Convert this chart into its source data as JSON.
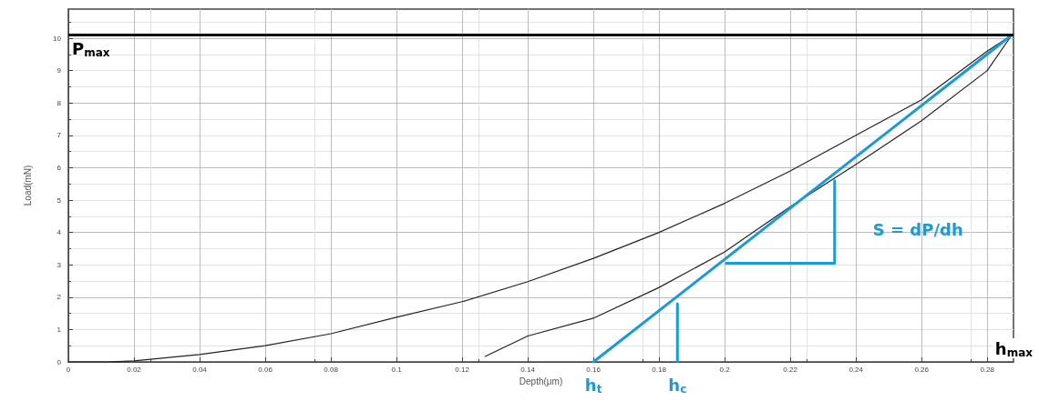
{
  "chart_data": {
    "type": "line",
    "xlabel": "Depth(μm)",
    "ylabel": "Load(mN)",
    "xlim": [
      0,
      0.288
    ],
    "ylim": [
      0,
      10.9
    ],
    "xticks": [
      0,
      0.02,
      0.04,
      0.06,
      0.08,
      0.1,
      0.12,
      0.14,
      0.16,
      0.18,
      0.2,
      0.22,
      0.24,
      0.26,
      0.28
    ],
    "yticks": [
      0,
      1,
      2,
      3,
      4,
      5,
      6,
      7,
      8,
      9,
      10
    ],
    "grid": true,
    "marker": "none",
    "line_style": "solid",
    "series": [
      {
        "color": "#222222",
        "x": [
          0,
          0.012,
          0.02,
          0.04,
          0.06,
          0.08,
          0.1,
          0.12,
          0.14,
          0.16,
          0.18,
          0.2,
          0.22,
          0.24,
          0.26,
          0.28,
          0.2875
        ],
        "values": [
          0,
          0,
          0.03,
          0.23,
          0.5,
          0.87,
          1.38,
          1.86,
          2.48,
          3.2,
          4.0,
          4.9,
          5.9,
          7.0,
          8.1,
          9.6,
          10.1
        ]
      },
      {
        "color": "#222222",
        "x": [
          0.127,
          0.14,
          0.16,
          0.18,
          0.2,
          0.22,
          0.24,
          0.26,
          0.28,
          0.2875
        ],
        "values": [
          0.17,
          0.8,
          1.35,
          2.3,
          3.4,
          4.8,
          6.1,
          7.45,
          9.0,
          10.1
        ]
      },
      {
        "color": "#1a9ad6",
        "x": [
          0.16,
          0.2875
        ],
        "values": [
          0,
          10.1
        ]
      },
      {
        "color": "#1a9ad6",
        "x": [
          0.1856,
          0.1856
        ],
        "values": [
          0,
          1.8
        ]
      },
      {
        "color": "#1a9ad6",
        "x": [
          0.2005,
          0.2335,
          0.2335
        ],
        "values": [
          3.05,
          3.05,
          5.6
        ]
      }
    ],
    "ref_lines": [
      {
        "axis": "y",
        "value": 10.1,
        "label": "P$_{max}$",
        "color": "#000000"
      }
    ],
    "annotations": [
      {
        "text": "h$_{t}$",
        "x": 0.16,
        "y": 0
      },
      {
        "text": "h$_{c}$",
        "x": 0.1856,
        "y": 0
      },
      "h$_{max}$",
      {
        "text": "S = dP/dh",
        "x": 0.2335,
        "y": 3.05
      }
    ]
  }
}
